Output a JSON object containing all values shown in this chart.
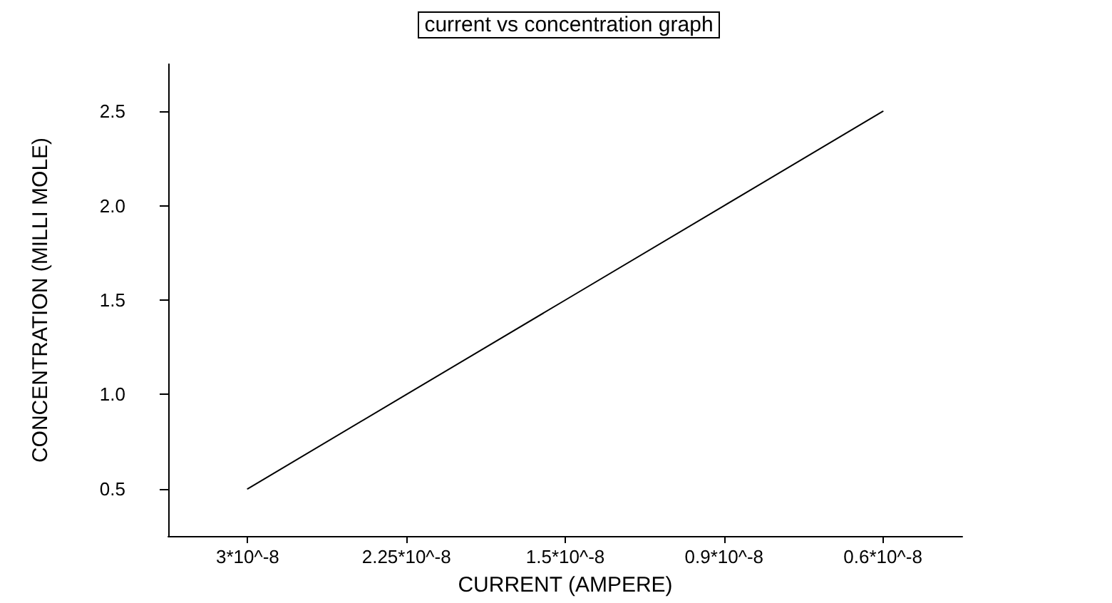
{
  "chart_data": {
    "type": "line",
    "title": "current vs concentration graph",
    "xlabel": "CURRENT (AMPERE)",
    "ylabel": "CONCENTRATION (MILLI MOLE)",
    "categories": [
      "3*10^-8",
      "2.25*10^-8",
      "1.5*10^-8",
      "0.9*10^-8",
      "0.6*10^-8"
    ],
    "series": [
      {
        "color": "#000000",
        "values": [
          0.5,
          1.0,
          1.5,
          2.0,
          2.5
        ]
      }
    ],
    "ylim": [
      0.25,
      2.75
    ],
    "yticks": [
      0.5,
      {
        "value": 1,
        "label": "1.0"
      },
      1.5,
      {
        "value": 2,
        "label": "2.0"
      },
      2.5
    ],
    "grid": false,
    "marker": "none"
  }
}
